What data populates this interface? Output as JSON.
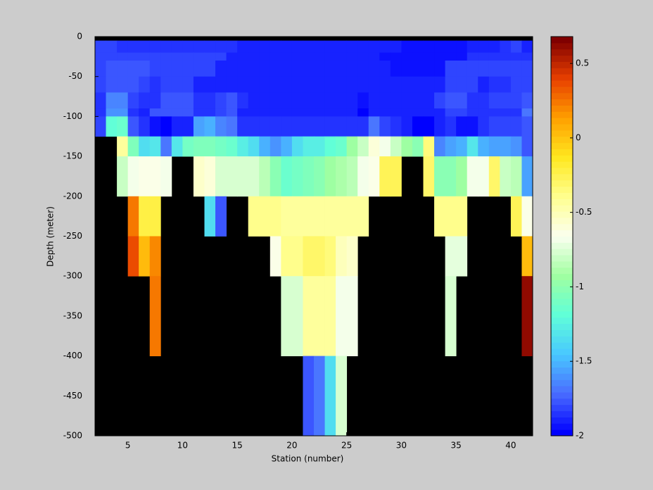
{
  "chart_data": {
    "type": "heatmap",
    "xlabel": "Station (number)",
    "ylabel": "Depth (meter)",
    "xlim": [
      2,
      42
    ],
    "ylim": [
      -500,
      0
    ],
    "xticks": [
      5,
      10,
      15,
      20,
      25,
      30,
      35,
      40
    ],
    "yticks": [
      0,
      -50,
      -100,
      -150,
      -200,
      -250,
      -300,
      -350,
      -400,
      -450,
      -500
    ],
    "xbins": [
      2,
      3,
      4,
      5,
      6,
      7,
      8,
      9,
      10,
      11,
      12,
      13,
      14,
      15,
      16,
      17,
      18,
      19,
      20,
      21,
      22,
      23,
      24,
      25,
      26,
      27,
      28,
      29,
      30,
      31,
      32,
      33,
      34,
      35,
      36,
      37,
      38,
      39,
      40,
      41,
      42
    ],
    "ybins": [
      -5,
      -20,
      -30,
      -50,
      -70,
      -90,
      -100,
      -125,
      -150,
      -200,
      -250,
      -300,
      -400,
      -500
    ],
    "clim": [
      -2,
      0.68
    ],
    "cticks": [
      -2,
      -1.5,
      -1,
      -0.5,
      0,
      0.5
    ],
    "colormap": [
      "#0000ff",
      "#4a6cff",
      "#48c8ff",
      "#60ffd8",
      "#a0ffa0",
      "#fbfff0",
      "#ffff90",
      "#ffe820",
      "#ffa000",
      "#e84000",
      "#800000"
    ],
    "background": "#000000",
    "values": [
      [
        -1.8,
        -1.8,
        -1.85,
        -1.85,
        -1.85,
        -1.85,
        -1.85,
        -1.85,
        -1.85,
        -1.85,
        -1.85,
        -1.85,
        -1.85,
        -1.9,
        -1.9,
        -1.9,
        -1.9,
        -1.9,
        -1.9,
        -1.9,
        -1.9,
        -1.9,
        -1.9,
        -1.9,
        -1.9,
        -1.9,
        -1.9,
        -1.9,
        -1.95,
        -1.95,
        -1.95,
        -1.95,
        -1.95,
        -1.95,
        -1.9,
        -1.9,
        -1.9,
        -1.85,
        -1.8,
        -1.9
      ],
      [
        -1.8,
        -1.8,
        -1.8,
        -1.8,
        -1.8,
        -1.82,
        -1.82,
        -1.82,
        -1.82,
        -1.82,
        -1.82,
        -1.82,
        -1.9,
        -1.9,
        -1.9,
        -1.9,
        -1.9,
        -1.9,
        -1.9,
        -1.9,
        -1.9,
        -1.9,
        -1.9,
        -1.9,
        -1.9,
        -1.9,
        -1.92,
        -1.92,
        -1.92,
        -1.92,
        -1.92,
        -1.92,
        -1.92,
        -1.92,
        -1.85,
        -1.85,
        -1.85,
        -1.85,
        -1.85,
        -1.85
      ],
      [
        -1.8,
        -1.75,
        -1.75,
        -1.75,
        -1.75,
        -1.82,
        -1.82,
        -1.82,
        -1.82,
        -1.82,
        -1.82,
        -1.9,
        -1.9,
        -1.9,
        -1.9,
        -1.9,
        -1.9,
        -1.9,
        -1.9,
        -1.9,
        -1.9,
        -1.9,
        -1.9,
        -1.9,
        -1.9,
        -1.9,
        -1.9,
        -1.92,
        -1.92,
        -1.92,
        -1.92,
        -1.92,
        -1.8,
        -1.8,
        -1.8,
        -1.82,
        -1.82,
        -1.82,
        -1.82,
        -1.82
      ],
      [
        -1.8,
        -1.75,
        -1.75,
        -1.75,
        -1.82,
        -1.85,
        -1.8,
        -1.8,
        -1.8,
        -1.9,
        -1.9,
        -1.9,
        -1.9,
        -1.9,
        -1.9,
        -1.9,
        -1.9,
        -1.9,
        -1.9,
        -1.9,
        -1.9,
        -1.9,
        -1.9,
        -1.9,
        -1.9,
        -1.9,
        -1.9,
        -1.9,
        -1.9,
        -1.9,
        -1.9,
        -1.9,
        -1.8,
        -1.8,
        -1.8,
        -1.88,
        -1.85,
        -1.85,
        -1.8,
        -1.8
      ],
      [
        -1.85,
        -1.65,
        -1.65,
        -1.8,
        -1.85,
        -1.85,
        -1.75,
        -1.75,
        -1.75,
        -1.85,
        -1.85,
        -1.8,
        -1.75,
        -1.85,
        -1.9,
        -1.9,
        -1.9,
        -1.9,
        -1.9,
        -1.9,
        -1.9,
        -1.9,
        -1.9,
        -1.9,
        -1.95,
        -1.9,
        -1.9,
        -1.9,
        -1.9,
        -1.9,
        -1.9,
        -1.8,
        -1.75,
        -1.75,
        -1.85,
        -1.85,
        -1.8,
        -1.8,
        -1.8,
        -1.75
      ],
      [
        -1.85,
        -1.6,
        -1.6,
        -1.85,
        -1.9,
        -1.75,
        -1.75,
        -1.75,
        -1.75,
        -1.85,
        -1.85,
        -1.8,
        -1.75,
        -1.9,
        -1.9,
        -1.9,
        -1.9,
        -1.9,
        -1.9,
        -1.9,
        -1.9,
        -1.9,
        -1.9,
        -1.9,
        -1.98,
        -1.9,
        -1.9,
        -1.9,
        -1.9,
        -1.9,
        -1.9,
        -1.9,
        -1.8,
        -1.8,
        -1.85,
        -1.85,
        -1.85,
        -1.85,
        -1.85,
        -1.7
      ],
      [
        -1.8,
        -1.2,
        -1.15,
        -1.75,
        -1.85,
        -1.95,
        -2,
        -1.9,
        -1.9,
        -1.55,
        -1.5,
        -1.65,
        -1.7,
        -1.85,
        -1.85,
        -1.85,
        -1.85,
        -1.85,
        -1.85,
        -1.85,
        -1.85,
        -1.85,
        -1.85,
        -1.85,
        -1.85,
        -1.7,
        -1.8,
        -1.85,
        -1.9,
        -2,
        -2,
        -1.9,
        -1.85,
        -1.95,
        -1.95,
        -1.85,
        -1.8,
        -1.8,
        -1.8,
        -1.75
      ],
      [
        null,
        null,
        -0.45,
        -1.05,
        -1.35,
        -1.3,
        -1.7,
        -1.3,
        -1.1,
        -1.05,
        -1.05,
        -1.1,
        -1.15,
        -1.25,
        -1.35,
        -1.5,
        -1.6,
        -1.5,
        -1.35,
        -1.25,
        -1.25,
        -1.2,
        -1.15,
        -0.95,
        -0.8,
        -0.6,
        -0.7,
        -0.8,
        -0.95,
        -1.0,
        -0.35,
        -1.65,
        -1.55,
        -1.5,
        -1.3,
        -1.5,
        -1.55,
        -1.55,
        -1.6,
        -1.75
      ],
      [
        null,
        null,
        -0.8,
        -0.7,
        -0.65,
        -0.65,
        -0.7,
        null,
        null,
        -0.55,
        -0.6,
        -0.75,
        -0.75,
        -0.75,
        -0.75,
        -0.85,
        -1.0,
        -1.15,
        -1.1,
        -1.05,
        -1.0,
        -0.95,
        -0.9,
        -0.85,
        -0.7,
        -0.65,
        -0.25,
        -0.25,
        null,
        null,
        -0.3,
        -1.0,
        -1.0,
        -0.95,
        -0.7,
        -0.7,
        -0.3,
        -0.8,
        -0.85,
        -1.55
      ],
      [
        null,
        null,
        null,
        0.25,
        -0.2,
        -0.2,
        null,
        null,
        null,
        null,
        -1.35,
        -1.75,
        null,
        null,
        -0.4,
        -0.4,
        -0.4,
        -0.45,
        -0.45,
        -0.45,
        -0.45,
        -0.45,
        -0.45,
        -0.45,
        -0.45,
        null,
        null,
        null,
        null,
        null,
        null,
        -0.4,
        -0.4,
        -0.4,
        null,
        null,
        null,
        null,
        -0.25,
        -0.65
      ],
      [
        null,
        null,
        null,
        0.35,
        0.05,
        0.2,
        null,
        null,
        null,
        null,
        null,
        null,
        null,
        null,
        null,
        null,
        -0.65,
        -0.4,
        -0.4,
        -0.3,
        -0.3,
        -0.35,
        -0.5,
        -0.55,
        null,
        null,
        null,
        null,
        null,
        null,
        null,
        null,
        -0.72,
        -0.72,
        null,
        null,
        null,
        null,
        null,
        0.05
      ],
      [
        null,
        null,
        null,
        null,
        null,
        0.25,
        null,
        null,
        null,
        null,
        null,
        null,
        null,
        null,
        null,
        null,
        null,
        -0.75,
        -0.75,
        -0.45,
        -0.45,
        -0.45,
        -0.7,
        -0.7,
        null,
        null,
        null,
        null,
        null,
        null,
        null,
        null,
        -0.75,
        null,
        null,
        null,
        null,
        null,
        null,
        0.6
      ],
      [
        null,
        null,
        null,
        null,
        null,
        null,
        null,
        null,
        null,
        null,
        null,
        null,
        null,
        null,
        null,
        null,
        null,
        null,
        null,
        -1.75,
        -1.7,
        -1.35,
        -0.75,
        null,
        null,
        null,
        null,
        null,
        null,
        null,
        null,
        null,
        null,
        null,
        null,
        null,
        null,
        null,
        null,
        null
      ]
    ]
  }
}
